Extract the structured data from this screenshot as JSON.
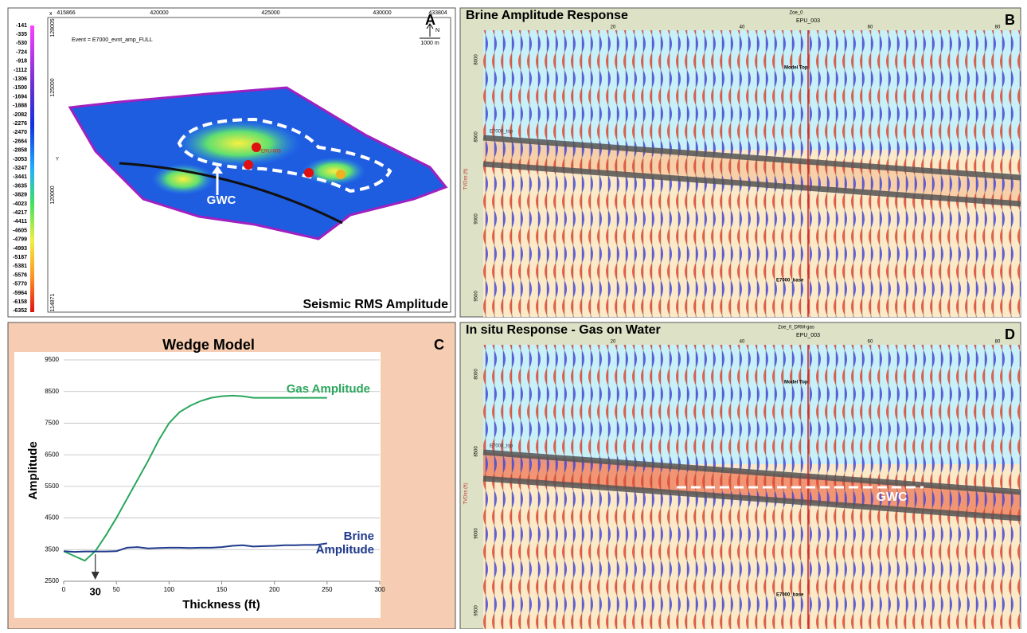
{
  "panel_a": {
    "letter": "A",
    "event": "Event = E7000_evnt_amp_FULL",
    "x_axis": "x",
    "y_axis": "Y",
    "x_ticks": [
      415866,
      420000,
      425000,
      430000,
      433804
    ],
    "y_ticks": [
      128005,
      125000,
      120000,
      114871
    ],
    "north": "N",
    "scale": "1000 m",
    "well": "ERU-003",
    "gwc": "GWC",
    "caption": "Seismic RMS Amplitude",
    "colorbar": [
      -141,
      -335,
      -530,
      -724,
      -918,
      -1112,
      -1306,
      -1500,
      -1694,
      -1888,
      -2082,
      -2276,
      -2470,
      -2664,
      -2858,
      -3053,
      -3247,
      -3441,
      -3635,
      -3829,
      -4023,
      -4217,
      -4411,
      -4605,
      -4799,
      -4993,
      -5187,
      -5381,
      -5576,
      -5770,
      -5964,
      -6158,
      -6352
    ]
  },
  "panel_b": {
    "letter": "B",
    "title": "Brine Amplitude Response",
    "model": "Zoe_0",
    "well": "EPU_003",
    "trace_ticks": [
      20,
      40,
      60,
      80
    ],
    "depth_ticks": [
      8000,
      8500,
      9000,
      9500
    ],
    "depth_label": "TVDss (ft)",
    "model_top": "Model Top",
    "top": "E7000_top",
    "base": "E7000_base"
  },
  "panel_d": {
    "letter": "D",
    "title": "In situ Response - Gas on Water",
    "model": "Zoe_0_DRM-gas",
    "well": "EPU_003",
    "trace_ticks": [
      20,
      40,
      60,
      80
    ],
    "depth_ticks": [
      8000,
      8500,
      9000,
      9500
    ],
    "depth_label": "TVDss (ft)",
    "model_top": "Model Top",
    "top": "E7000_top",
    "base": "E7000_base",
    "gwc": "GWC"
  },
  "chart_data": {
    "type": "line",
    "title": "Wedge Model",
    "letter": "C",
    "x_label": "Thickness (ft)",
    "y_label": "Amplitude",
    "x": [
      0,
      10,
      20,
      30,
      40,
      50,
      60,
      70,
      80,
      90,
      100,
      110,
      120,
      130,
      140,
      150,
      160,
      170,
      180,
      190,
      200,
      210,
      220,
      230,
      240,
      250
    ],
    "series": [
      {
        "name": "Gas Amplitude",
        "color": "#2aa65c",
        "values": [
          3450,
          3300,
          3150,
          3450,
          3950,
          4500,
          5100,
          5700,
          6300,
          6950,
          7500,
          7850,
          8050,
          8200,
          8300,
          8350,
          8370,
          8350,
          8300,
          8300,
          8300,
          8300,
          8300,
          8300,
          8300,
          8300
        ]
      },
      {
        "name": "Brine Amplitude",
        "color": "#1f3a8c",
        "values": [
          3450,
          3430,
          3440,
          3440,
          3440,
          3450,
          3560,
          3580,
          3540,
          3550,
          3560,
          3560,
          3550,
          3560,
          3560,
          3580,
          3620,
          3640,
          3600,
          3610,
          3620,
          3640,
          3640,
          3650,
          3650,
          3700
        ]
      }
    ],
    "xlim": [
      0,
      300
    ],
    "xticks": [
      0,
      50,
      100,
      150,
      200,
      250,
      300
    ],
    "ylim": [
      2500,
      9500
    ],
    "yticks": [
      2500,
      3500,
      4500,
      5500,
      6500,
      7500,
      8500,
      9500
    ],
    "grid": true,
    "annotation_x": 30
  }
}
